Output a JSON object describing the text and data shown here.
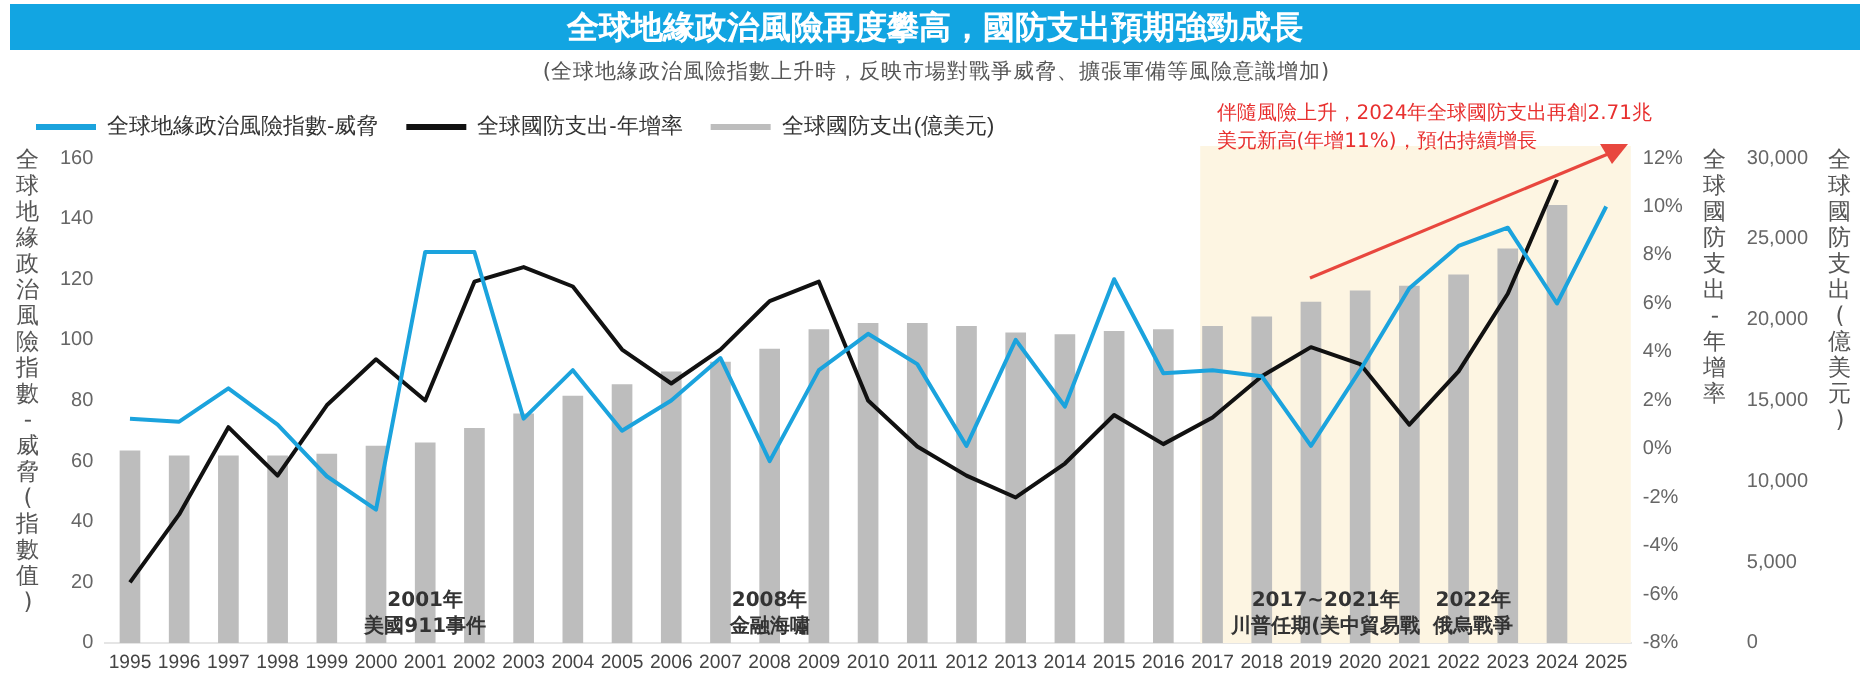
{
  "chart_data": {
    "type": "line",
    "title": "全球地緣政治風險再度攀高，國防支出預期強勁成長",
    "subtitle": "(全球地緣政治風險指數上升時，反映市場對戰爭威脅、擴張軍備等風險意識增加)",
    "ylabel": "全球地緣政治風險指數-威脅(指數值)",
    "y2label": "全球國防支出-年增率",
    "y3label": "全球國防支出(億美元)",
    "categories": [
      "1995",
      "1996",
      "1997",
      "1998",
      "1999",
      "2000",
      "2001",
      "2002",
      "2003",
      "2004",
      "2005",
      "2006",
      "2007",
      "2008",
      "2009",
      "2010",
      "2011",
      "2012",
      "2013",
      "2014",
      "2015",
      "2016",
      "2017",
      "2018",
      "2019",
      "2020",
      "2021",
      "2022",
      "2023",
      "2024",
      "2025"
    ],
    "series": [
      {
        "name": "全球地緣政治風險指數-威脅",
        "color": "#1ba3dd",
        "values": [
          74,
          73,
          84,
          72,
          55,
          44,
          129,
          129,
          74,
          90,
          70,
          80,
          94,
          60,
          90,
          102,
          92,
          65,
          100,
          78,
          120,
          89,
          90,
          88,
          65,
          90,
          117,
          131,
          137,
          112,
          144
        ]
      },
      {
        "name": "全球國防支出-年增率",
        "color": "#111111",
        "axis": "y2",
        "values": [
          -5.5,
          -2.7,
          0.9,
          -1.1,
          1.8,
          3.7,
          2.0,
          6.9,
          7.5,
          6.7,
          4.1,
          2.7,
          4.1,
          6.1,
          6.9,
          2.0,
          0.1,
          -1.1,
          -2.0,
          -0.6,
          1.4,
          0.2,
          1.3,
          3.0,
          4.2,
          3.5,
          1.0,
          3.2,
          6.4,
          11.1,
          null
        ]
      },
      {
        "name": "全球國防支出(億美元)",
        "type": "bar",
        "color": "#bdbdbd",
        "axis": "y3",
        "values": [
          11900,
          11600,
          11600,
          11600,
          11700,
          12200,
          12400,
          13300,
          14200,
          15300,
          16000,
          16800,
          17400,
          18200,
          19400,
          19800,
          19800,
          19600,
          19200,
          19100,
          19300,
          19400,
          19600,
          20200,
          21100,
          21800,
          22100,
          22800,
          24400,
          27100,
          null
        ]
      }
    ],
    "ylim": [
      0,
      160
    ],
    "yticks": [
      0,
      20,
      40,
      60,
      80,
      100,
      120,
      140,
      160
    ],
    "y2lim": [
      -8,
      12
    ],
    "y2ticks": [
      {
        "value": -8,
        "label": "-8%"
      },
      {
        "value": -6,
        "label": "-6%"
      },
      {
        "value": -4,
        "label": "-4%"
      },
      {
        "value": -2,
        "label": "-2%"
      },
      {
        "value": 0,
        "label": "0%"
      },
      {
        "value": 2,
        "label": "2%"
      },
      {
        "value": 4,
        "label": "4%"
      },
      {
        "value": 6,
        "label": "6%"
      },
      {
        "value": 8,
        "label": "8%"
      },
      {
        "value": 10,
        "label": "10%"
      },
      {
        "value": 12,
        "label": "12%"
      }
    ],
    "y3lim": [
      0,
      30000
    ],
    "y3ticks": [
      0,
      {
        "value": 5000,
        "label": "5,000"
      },
      {
        "value": 10000,
        "label": "10,000"
      },
      {
        "value": 15000,
        "label": "15,000"
      },
      {
        "value": 20000,
        "label": "20,000"
      },
      {
        "value": 25000,
        "label": "25,000"
      },
      {
        "value": 30000,
        "label": "30,000"
      }
    ],
    "bands": [
      {
        "axis": "x",
        "from": "2017",
        "to": "2025",
        "color": "#fdf5e2"
      }
    ],
    "annotations": [
      "伴隨風險上升，2024年全球國防支出再創2.71兆美元新高(年增11%)，預估持續增長",
      "2001年",
      "美國911事件",
      "2008年",
      "金融海嘯",
      "2017~2021年",
      "川普任期(美中貿易戰",
      "2022年",
      "俄烏戰爭"
    ],
    "legend": "top",
    "marker": "none",
    "grid": false
  }
}
